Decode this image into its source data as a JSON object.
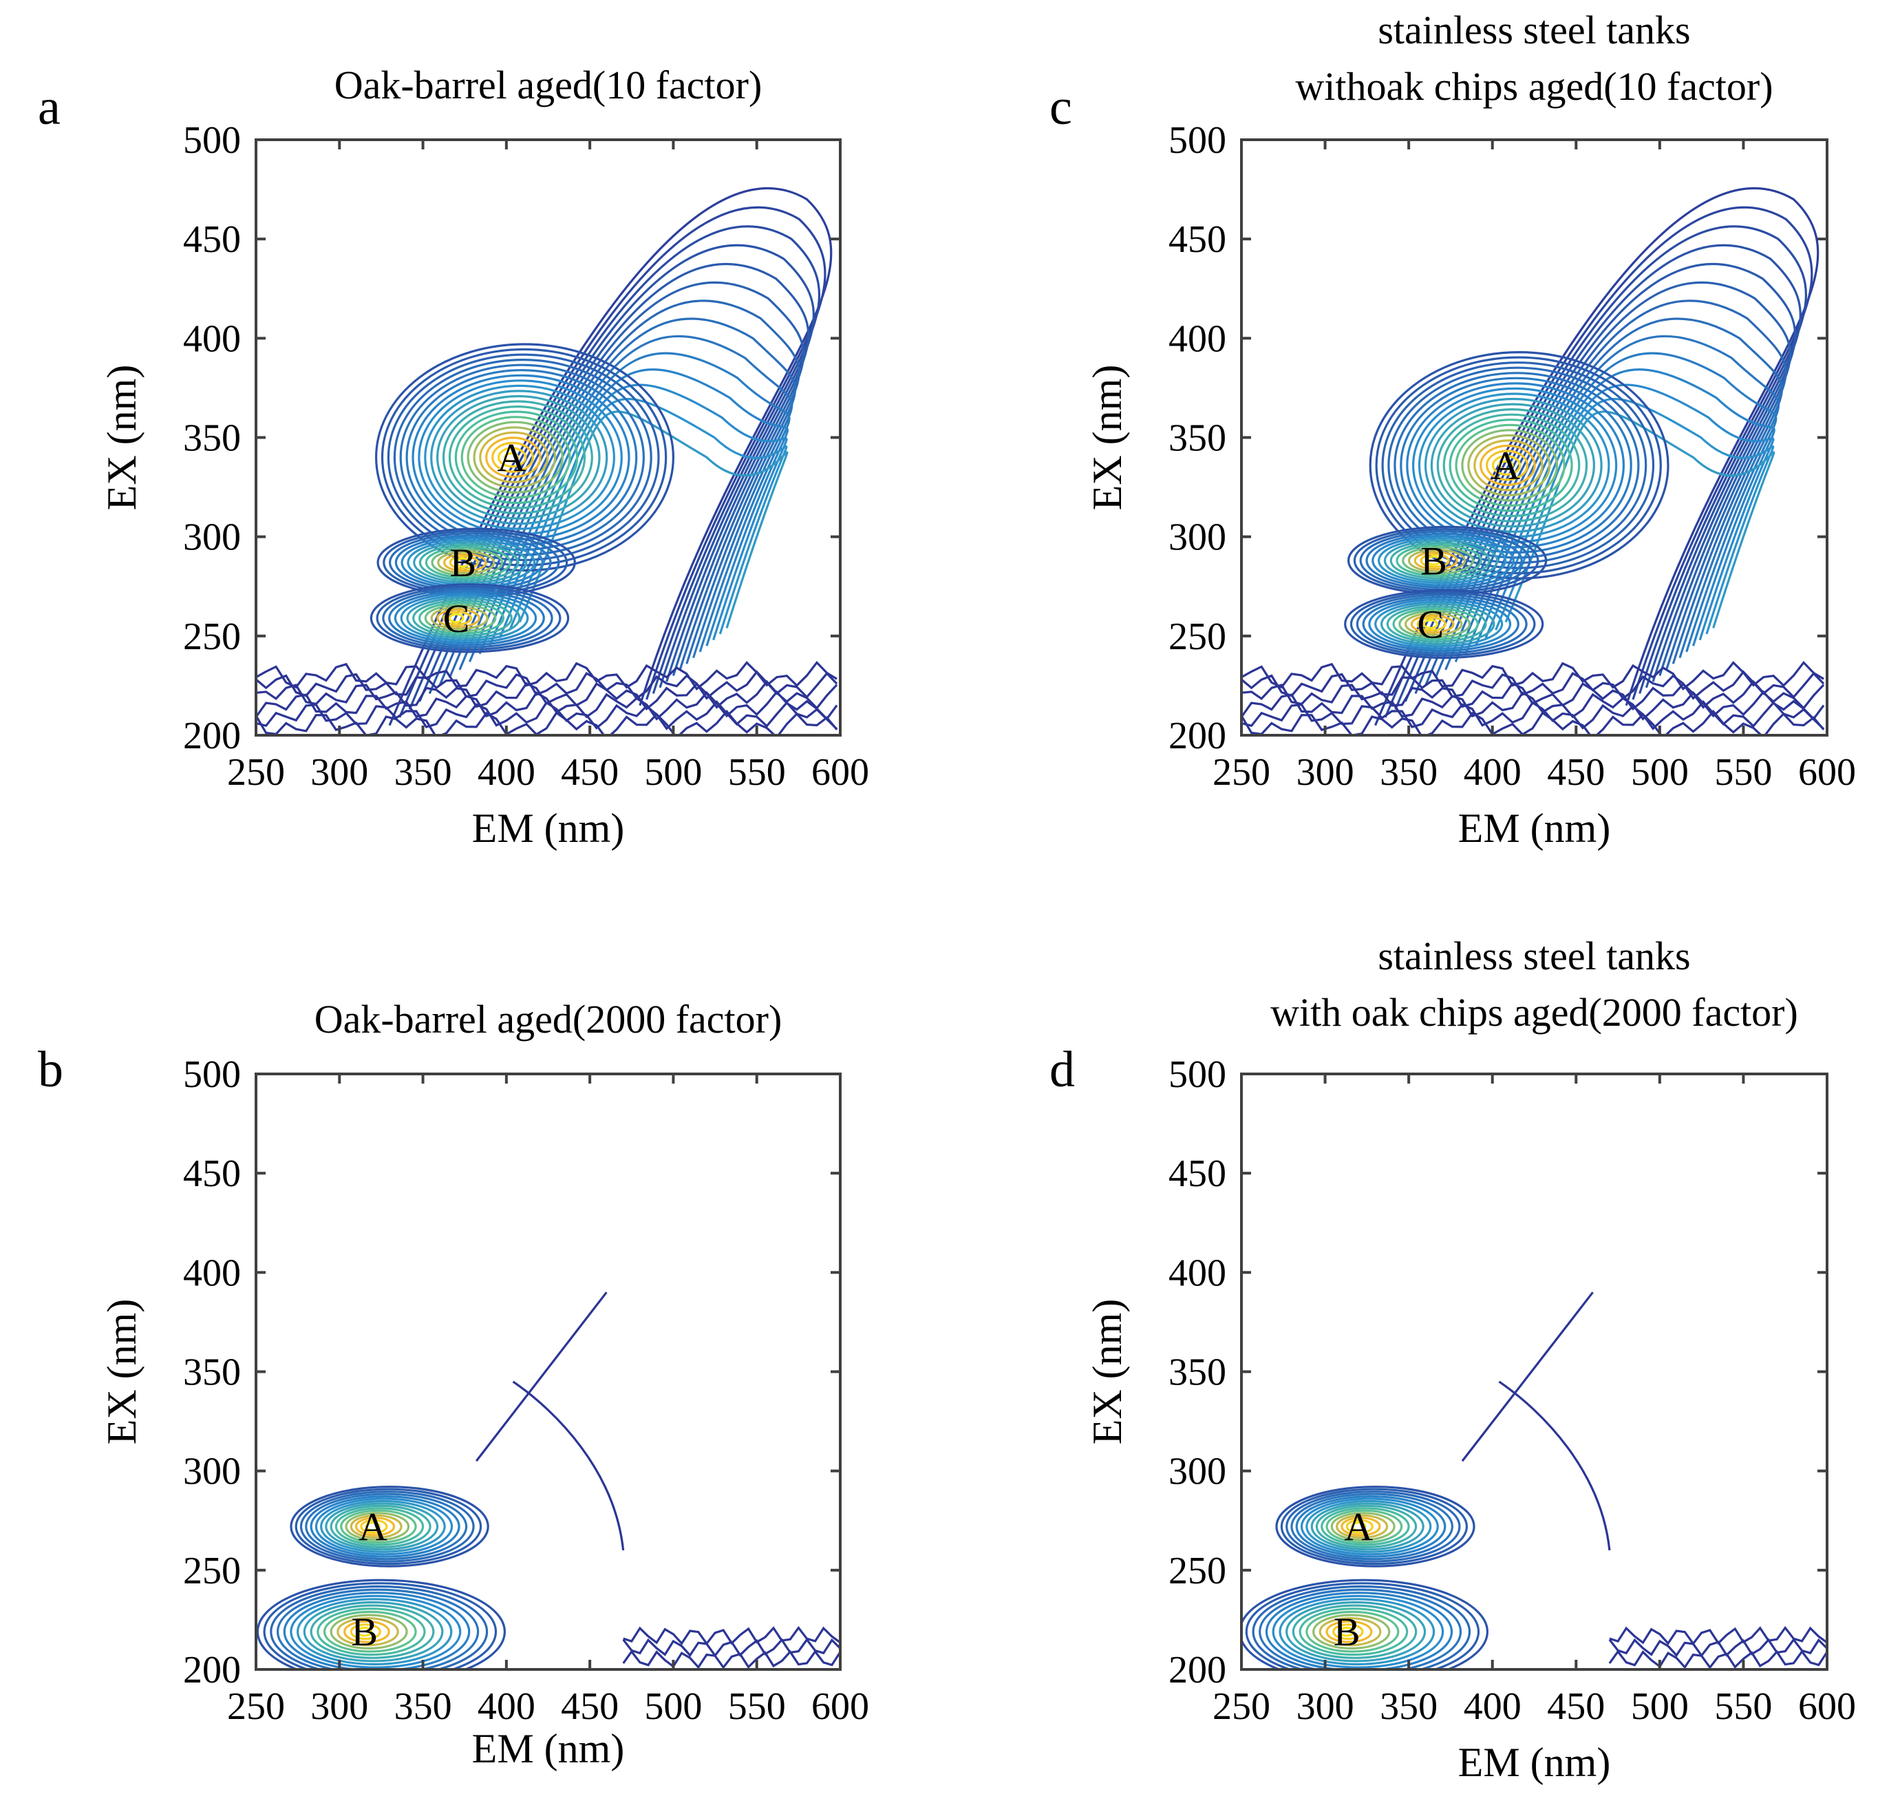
{
  "chart_data": [
    {
      "panel": "a",
      "type": "contour",
      "title": [
        "Oak-barrel aged(10 factor)"
      ],
      "xlabel": "EM (nm)",
      "ylabel": "EX (nm)",
      "xlim": [
        250,
        600
      ],
      "ylim": [
        200,
        500
      ],
      "xticks": [
        250,
        300,
        350,
        400,
        450,
        500,
        550,
        600
      ],
      "yticks": [
        200,
        250,
        300,
        350,
        400,
        450,
        500
      ],
      "peaks": [
        {
          "label": "A",
          "em": 403,
          "ex": 340
        },
        {
          "label": "B",
          "em": 374,
          "ex": 287
        },
        {
          "label": "C",
          "em": 370,
          "ex": 259
        }
      ]
    },
    {
      "panel": "b",
      "type": "contour",
      "title": [
        "Oak-barrel aged(2000 factor)"
      ],
      "xlabel": "EM (nm)",
      "ylabel": "EX (nm)",
      "xlim": [
        250,
        600
      ],
      "ylim": [
        200,
        500
      ],
      "xticks": [
        250,
        300,
        350,
        400,
        450,
        500,
        550,
        600
      ],
      "yticks": [
        200,
        250,
        300,
        350,
        400,
        450,
        500
      ],
      "peaks": [
        {
          "label": "A",
          "em": 320,
          "ex": 272
        },
        {
          "label": "B",
          "em": 315,
          "ex": 219
        }
      ]
    },
    {
      "panel": "c",
      "type": "contour",
      "title": [
        "stainless steel tanks",
        "withoak chips aged(10 factor)"
      ],
      "xlabel": "EM (nm)",
      "ylabel": "EX (nm)",
      "xlim": [
        250,
        600
      ],
      "ylim": [
        200,
        500
      ],
      "xticks": [
        250,
        300,
        350,
        400,
        450,
        500,
        550,
        600
      ],
      "yticks": [
        200,
        250,
        300,
        350,
        400,
        450,
        500
      ],
      "peaks": [
        {
          "label": "A",
          "em": 408,
          "ex": 336
        },
        {
          "label": "B",
          "em": 365,
          "ex": 288
        },
        {
          "label": "C",
          "em": 363,
          "ex": 256
        }
      ]
    },
    {
      "panel": "d",
      "type": "contour",
      "title": [
        "stainless steel tanks",
        "with oak chips aged(2000 factor)"
      ],
      "xlabel": "EM (nm)",
      "ylabel": "EX (nm)",
      "xlim": [
        250,
        600
      ],
      "ylim": [
        200,
        500
      ],
      "xticks": [
        250,
        300,
        350,
        400,
        450,
        500,
        550,
        600
      ],
      "yticks": [
        200,
        250,
        300,
        350,
        400,
        450,
        500
      ],
      "peaks": [
        {
          "label": "A",
          "em": 320,
          "ex": 272
        },
        {
          "label": "B",
          "em": 313,
          "ex": 219
        }
      ]
    }
  ],
  "colors": {
    "contour_low": "#2c3595",
    "contour_mid": "#2a8fd0",
    "contour_green": "#4fc29a",
    "contour_high": "#f2b72e",
    "contour_peak": "#f7e31c",
    "frame": "#404040"
  }
}
